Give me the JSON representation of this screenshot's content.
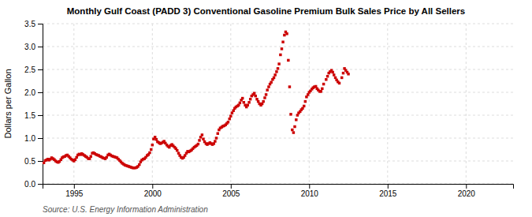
{
  "chart_data": {
    "type": "scatter",
    "title": "Monthly Gulf Coast (PADD 3) Conventional Gasoline Premium Bulk Sales Price by All Sellers",
    "y_label": "Dollars per Gallon",
    "source": "Source: U.S. Energy Information Administration",
    "color": "#CC0000",
    "marker": "square",
    "grid": true,
    "xlim": [
      1993.0,
      2023.0
    ],
    "ylim": [
      0.0,
      3.5
    ],
    "xticks": [
      1995,
      2000,
      2005,
      2010,
      2015,
      2020
    ],
    "yticks": [
      {
        "value": 0.0,
        "label": "0.0"
      },
      0.5,
      {
        "value": 1.0,
        "label": "1.0"
      },
      1.5,
      {
        "value": 2.0,
        "label": "2.0"
      },
      2.5,
      {
        "value": 3.0,
        "label": "3.0"
      },
      3.5
    ],
    "x": [
      1993.08,
      1993.17,
      1993.25,
      1993.33,
      1993.42,
      1993.5,
      1993.58,
      1993.67,
      1993.75,
      1993.83,
      1993.92,
      1994.0,
      1994.08,
      1994.17,
      1994.25,
      1994.33,
      1994.42,
      1994.5,
      1994.58,
      1994.67,
      1994.75,
      1994.83,
      1994.92,
      1995.0,
      1995.08,
      1995.17,
      1995.25,
      1995.33,
      1995.42,
      1995.5,
      1995.58,
      1995.67,
      1995.75,
      1995.83,
      1995.92,
      1996.0,
      1996.08,
      1996.17,
      1996.25,
      1996.33,
      1996.42,
      1996.5,
      1996.58,
      1996.67,
      1996.75,
      1996.83,
      1996.92,
      1997.0,
      1997.08,
      1997.17,
      1997.25,
      1997.33,
      1997.42,
      1997.5,
      1997.58,
      1997.67,
      1997.75,
      1997.83,
      1997.92,
      1998.0,
      1998.08,
      1998.17,
      1998.25,
      1998.33,
      1998.42,
      1998.5,
      1998.58,
      1998.67,
      1998.75,
      1998.83,
      1998.92,
      1999.0,
      1999.08,
      1999.17,
      1999.25,
      1999.33,
      1999.42,
      1999.5,
      1999.58,
      1999.67,
      1999.75,
      1999.83,
      1999.92,
      2000.0,
      2000.08,
      2000.17,
      2000.25,
      2000.33,
      2000.42,
      2000.5,
      2000.58,
      2000.67,
      2000.75,
      2000.83,
      2000.92,
      2001.0,
      2001.08,
      2001.17,
      2001.25,
      2001.33,
      2001.42,
      2001.5,
      2001.58,
      2001.67,
      2001.75,
      2001.83,
      2001.92,
      2002.0,
      2002.08,
      2002.17,
      2002.25,
      2002.33,
      2002.42,
      2002.5,
      2002.58,
      2002.67,
      2002.75,
      2002.83,
      2002.92,
      2003.0,
      2003.08,
      2003.17,
      2003.25,
      2003.33,
      2003.42,
      2003.5,
      2003.58,
      2003.67,
      2003.75,
      2003.83,
      2003.92,
      2004.0,
      2004.08,
      2004.17,
      2004.25,
      2004.33,
      2004.42,
      2004.5,
      2004.58,
      2004.67,
      2004.75,
      2004.83,
      2004.92,
      2005.0,
      2005.08,
      2005.17,
      2005.25,
      2005.33,
      2005.42,
      2005.5,
      2005.58,
      2005.67,
      2005.75,
      2005.83,
      2005.92,
      2006.0,
      2006.08,
      2006.17,
      2006.25,
      2006.33,
      2006.42,
      2006.5,
      2006.58,
      2006.67,
      2006.75,
      2006.83,
      2006.92,
      2007.0,
      2007.08,
      2007.17,
      2007.25,
      2007.33,
      2007.42,
      2007.5,
      2007.58,
      2007.67,
      2007.75,
      2007.83,
      2007.92,
      2008.0,
      2008.08,
      2008.17,
      2008.25,
      2008.33,
      2008.42,
      2008.5,
      2008.58,
      2008.67,
      2008.75,
      2008.83,
      2008.92,
      2009.0,
      2009.08,
      2009.17,
      2009.25,
      2009.33,
      2009.42,
      2009.5,
      2009.58,
      2009.67,
      2009.75,
      2009.83,
      2009.92,
      2010.0,
      2010.08,
      2010.17,
      2010.25,
      2010.33,
      2010.42,
      2010.5,
      2010.58,
      2010.67,
      2010.75,
      2010.83,
      2010.92,
      2011.08,
      2011.17,
      2011.25,
      2011.33,
      2011.42,
      2011.5,
      2011.58,
      2011.67,
      2011.75,
      2011.83,
      2011.92,
      2012.08,
      2012.17,
      2012.25,
      2012.33,
      2012.42,
      2012.5
    ],
    "values": [
      0.46,
      0.51,
      0.52,
      0.54,
      0.52,
      0.54,
      0.57,
      0.55,
      0.53,
      0.5,
      0.48,
      0.47,
      0.49,
      0.53,
      0.57,
      0.59,
      0.6,
      0.62,
      0.63,
      0.6,
      0.57,
      0.54,
      0.52,
      0.5,
      0.53,
      0.58,
      0.63,
      0.65,
      0.64,
      0.66,
      0.64,
      0.62,
      0.6,
      0.58,
      0.55,
      0.55,
      0.6,
      0.67,
      0.68,
      0.66,
      0.64,
      0.63,
      0.62,
      0.6,
      0.59,
      0.57,
      0.56,
      0.55,
      0.58,
      0.63,
      0.65,
      0.63,
      0.61,
      0.6,
      0.59,
      0.58,
      0.57,
      0.54,
      0.51,
      0.48,
      0.45,
      0.43,
      0.41,
      0.4,
      0.39,
      0.38,
      0.37,
      0.36,
      0.35,
      0.35,
      0.35,
      0.36,
      0.38,
      0.42,
      0.48,
      0.52,
      0.54,
      0.55,
      0.58,
      0.62,
      0.64,
      0.68,
      0.75,
      0.85,
      0.98,
      1.02,
      0.97,
      0.92,
      0.9,
      0.88,
      0.89,
      0.91,
      0.93,
      0.89,
      0.85,
      0.82,
      0.8,
      0.84,
      0.86,
      0.83,
      0.8,
      0.77,
      0.73,
      0.67,
      0.62,
      0.58,
      0.56,
      0.58,
      0.62,
      0.67,
      0.71,
      0.7,
      0.72,
      0.74,
      0.77,
      0.8,
      0.82,
      0.84,
      0.87,
      0.95,
      1.02,
      1.07,
      0.98,
      0.92,
      0.88,
      0.86,
      0.88,
      0.9,
      0.88,
      0.86,
      0.88,
      0.93,
      1.0,
      1.1,
      1.18,
      1.22,
      1.24,
      1.26,
      1.27,
      1.29,
      1.32,
      1.35,
      1.42,
      1.48,
      1.55,
      1.6,
      1.65,
      1.68,
      1.7,
      1.72,
      1.77,
      1.83,
      1.87,
      1.78,
      1.72,
      1.68,
      1.72,
      1.78,
      1.85,
      1.92,
      1.95,
      1.98,
      1.92,
      1.85,
      1.8,
      1.75,
      1.72,
      1.75,
      1.8,
      1.88,
      1.95,
      2.05,
      2.12,
      2.18,
      2.22,
      2.28,
      2.32,
      2.38,
      2.45,
      2.52,
      2.62,
      2.82,
      2.95,
      3.1,
      3.25,
      3.32,
      3.28,
      2.7,
      2.12,
      1.52,
      1.18,
      1.12,
      1.25,
      1.4,
      1.5,
      1.55,
      1.58,
      1.62,
      1.65,
      1.7,
      1.8,
      1.9,
      1.95,
      2.0,
      2.03,
      2.07,
      2.1,
      2.12,
      2.13,
      2.08,
      2.05,
      2.02,
      2.02,
      2.08,
      2.18,
      2.28,
      2.35,
      2.42,
      2.45,
      2.48,
      2.44,
      2.38,
      2.32,
      2.27,
      2.23,
      2.2,
      2.32,
      2.42,
      2.52,
      2.48,
      2.44,
      2.4
    ]
  }
}
